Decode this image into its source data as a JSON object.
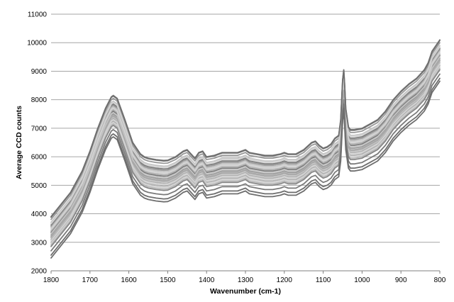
{
  "chart_data": {
    "type": "line",
    "title": "",
    "xlabel": "Wavenumber (cm-1)",
    "ylabel": "Average CCD counts",
    "xlim": [
      1800,
      800
    ],
    "ylim": [
      2000,
      11000
    ],
    "x_reversed": true,
    "grid": "horizontal",
    "legend": "none",
    "x_ticks": [
      1800,
      1700,
      1600,
      1500,
      1400,
      1300,
      1200,
      1100,
      1000,
      900,
      800
    ],
    "y_ticks": [
      2000,
      3000,
      4000,
      5000,
      6000,
      7000,
      8000,
      9000,
      10000,
      11000
    ],
    "colors": {
      "grid": "#a6a6a6",
      "axis": "#7f7f7f",
      "series_dark": "#6e6e6e",
      "series_light": "#d2d2d2"
    },
    "base_x": [
      1800,
      1750,
      1720,
      1700,
      1680,
      1660,
      1645,
      1640,
      1630,
      1610,
      1590,
      1570,
      1560,
      1550,
      1530,
      1510,
      1500,
      1480,
      1460,
      1450,
      1440,
      1430,
      1420,
      1410,
      1400,
      1380,
      1360,
      1340,
      1320,
      1310,
      1300,
      1290,
      1270,
      1250,
      1230,
      1210,
      1200,
      1190,
      1170,
      1150,
      1130,
      1120,
      1110,
      1100,
      1090,
      1080,
      1070,
      1060,
      1055,
      1050,
      1047,
      1045,
      1042,
      1035,
      1030,
      1020,
      1000,
      980,
      960,
      940,
      920,
      900,
      880,
      860,
      850,
      840,
      830,
      820,
      810,
      800
    ],
    "base_y": [
      2900,
      3750,
      4500,
      5200,
      6000,
      6700,
      7100,
      7150,
      7050,
      6300,
      5500,
      5100,
      5000,
      4950,
      4900,
      4870,
      4880,
      5000,
      5200,
      5250,
      5100,
      4950,
      5150,
      5200,
      5000,
      5050,
      5150,
      5150,
      5150,
      5200,
      5250,
      5150,
      5100,
      5050,
      5050,
      5100,
      5150,
      5100,
      5100,
      5250,
      5500,
      5550,
      5400,
      5300,
      5350,
      5450,
      5650,
      5750,
      6300,
      7700,
      8050,
      7600,
      6700,
      6050,
      5950,
      5950,
      6000,
      6150,
      6300,
      6600,
      7000,
      7300,
      7550,
      7750,
      7900,
      8050,
      8300,
      8700,
      8900,
      9100
    ],
    "series": [
      {
        "offset": 1000,
        "color": "#7a7a7a"
      },
      {
        "offset": 700,
        "color": "#7a7a7a"
      },
      {
        "offset": 450,
        "color": "#7a7a7a"
      },
      {
        "offset": 900,
        "color": "#999999"
      },
      {
        "offset": 650,
        "color": "#999999"
      },
      {
        "offset": 350,
        "color": "#999999"
      },
      {
        "offset": 500,
        "color": "#b0b0b0"
      },
      {
        "offset": 300,
        "color": "#b0b0b0"
      },
      {
        "offset": 200,
        "color": "#b0b0b0"
      },
      {
        "offset": 100,
        "color": "#b0b0b0"
      },
      {
        "offset": 800,
        "color": "#c4c4c4"
      },
      {
        "offset": 400,
        "color": "#c4c4c4"
      },
      {
        "offset": 250,
        "color": "#c4c4c4"
      },
      {
        "offset": 600,
        "color": "#c4c4c4"
      },
      {
        "offset": 150,
        "color": "#d2d2d2"
      },
      {
        "offset": 550,
        "color": "#d2d2d2"
      },
      {
        "offset": 750,
        "color": "#d2d2d2"
      },
      {
        "offset": 50,
        "color": "#d2d2d2"
      },
      {
        "offset": 280,
        "color": "#a8a8a8"
      },
      {
        "offset": 0,
        "color": "#b8b8b8"
      },
      {
        "offset": -50,
        "color": "#888888"
      },
      {
        "offset": -200,
        "color": "#7a7a7a"
      },
      {
        "offset": -350,
        "color": "#6e6e6e"
      },
      {
        "offset": -450,
        "color": "#6e6e6e"
      },
      {
        "offset": 980,
        "color": "#6e6e6e"
      }
    ]
  }
}
